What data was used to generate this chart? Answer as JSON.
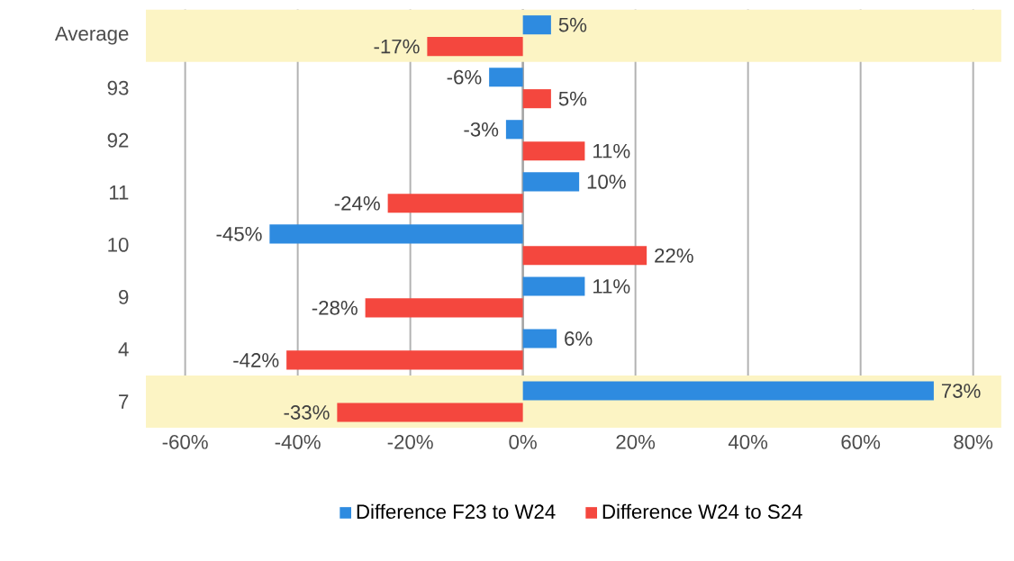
{
  "chart_data": {
    "type": "bar",
    "orientation": "horizontal",
    "categories": [
      "Average",
      "93",
      "92",
      "11",
      "10",
      "9",
      "4",
      "7"
    ],
    "series": [
      {
        "name": "Difference F23 to W24",
        "color": "#2e8be0",
        "values": [
          5,
          -6,
          -3,
          10,
          -45,
          11,
          6,
          73
        ],
        "value_labels": [
          "5%",
          "-6%",
          "-3%",
          "10%",
          "-45%",
          "11%",
          "6%",
          "73%"
        ]
      },
      {
        "name": "Difference W24 to S24",
        "color": "#f4473e",
        "values": [
          -17,
          5,
          11,
          -24,
          22,
          -28,
          -42,
          -33
        ],
        "value_labels": [
          "-17%",
          "5%",
          "11%",
          "-24%",
          "22%",
          "-28%",
          "-42%",
          "-33%"
        ]
      }
    ],
    "xlim": [
      -67,
      85
    ],
    "xticks": [
      {
        "value": -60,
        "label": "-60%"
      },
      {
        "value": -40,
        "label": "-40%"
      },
      {
        "value": -20,
        "label": "-20%"
      },
      {
        "value": 0,
        "label": "0%"
      },
      {
        "value": 20,
        "label": "20%"
      },
      {
        "value": 40,
        "label": "40%"
      },
      {
        "value": 60,
        "label": "60%"
      },
      {
        "value": 80,
        "label": "80%"
      }
    ],
    "bands": [
      {
        "axis": "y",
        "from": "Average",
        "to": "Average",
        "color": "#fcf4c4"
      },
      {
        "axis": "y",
        "from": "7",
        "to": "7",
        "color": "#fcf4c4"
      }
    ],
    "grid": "x",
    "legend": "bottom"
  }
}
